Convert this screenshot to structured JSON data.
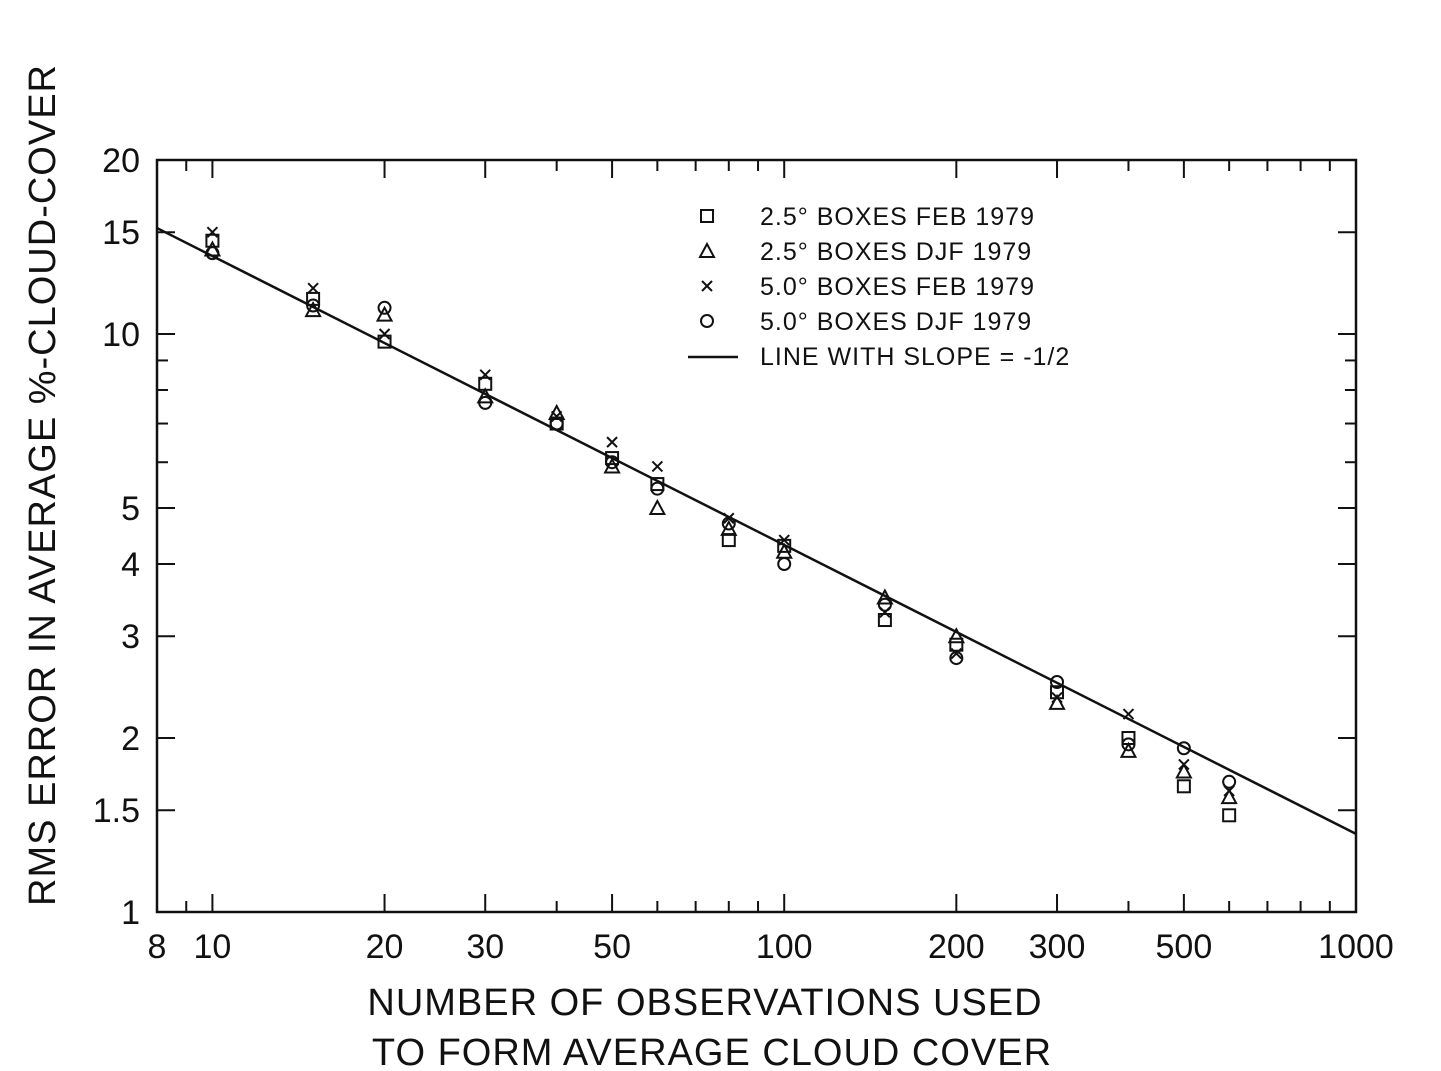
{
  "chart_data": {
    "type": "scatter",
    "xlabel": [
      "NUMBER OF OBSERVATIONS USED",
      "TO FORM AVERAGE CLOUD COVER"
    ],
    "ylabel": "RMS ERROR IN AVERAGE %-CLOUD-COVER",
    "x_scale": "log",
    "y_scale": "log",
    "xlim": [
      8,
      1000
    ],
    "ylim": [
      1,
      20
    ],
    "x_ticks": [
      8,
      10,
      20,
      30,
      50,
      100,
      200,
      300,
      500,
      1000
    ],
    "x_tick_labels": [
      "8",
      "10",
      "20",
      "30",
      "50",
      "100",
      "200",
      "300",
      "500",
      "1000"
    ],
    "y_ticks": [
      1,
      1.5,
      2,
      3,
      4,
      5,
      10,
      15,
      20
    ],
    "y_tick_labels": [
      "1",
      "1.5",
      "2",
      "3",
      "4",
      "5",
      "10",
      "15",
      "20"
    ],
    "grid": false,
    "legend_position": "top-right",
    "series": [
      {
        "name": "2.5° BOXES FEB 1979",
        "marker": "square",
        "x": [
          10,
          15,
          20,
          30,
          40,
          50,
          60,
          80,
          100,
          150,
          200,
          300,
          400,
          500,
          600
        ],
        "y": [
          14.5,
          11.5,
          9.7,
          8.2,
          7.0,
          6.1,
          5.5,
          4.4,
          4.3,
          3.2,
          2.9,
          2.4,
          2.0,
          1.65,
          1.47
        ]
      },
      {
        "name": "2.5° BOXES DJF 1979",
        "marker": "triangle",
        "x": [
          10,
          15,
          20,
          30,
          40,
          50,
          60,
          80,
          100,
          150,
          200,
          300,
          400,
          500,
          600
        ],
        "y": [
          14.0,
          11.0,
          10.8,
          7.8,
          7.3,
          5.9,
          5.0,
          4.6,
          4.2,
          3.5,
          3.0,
          2.3,
          1.9,
          1.75,
          1.58
        ]
      },
      {
        "name": "5.0° BOXES FEB 1979",
        "marker": "x",
        "x": [
          10,
          15,
          20,
          30,
          40,
          50,
          60,
          80,
          100,
          150,
          200,
          300,
          400,
          500,
          600
        ],
        "y": [
          15.0,
          12.0,
          10.0,
          8.5,
          7.2,
          6.5,
          5.9,
          4.8,
          4.4,
          3.3,
          2.8,
          2.35,
          2.2,
          1.8,
          1.62
        ]
      },
      {
        "name": "5.0° BOXES DJF 1979",
        "marker": "circle",
        "x": [
          10,
          15,
          20,
          30,
          40,
          50,
          60,
          80,
          100,
          150,
          200,
          300,
          400,
          500,
          600
        ],
        "y": [
          13.8,
          11.2,
          11.1,
          7.6,
          7.0,
          6.0,
          5.4,
          4.7,
          4.0,
          3.4,
          2.75,
          2.5,
          1.95,
          1.92,
          1.68
        ]
      },
      {
        "name": "LINE WITH SLOPE = -1/2",
        "type": "line",
        "x": [
          8,
          1000
        ],
        "y": [
          15.25,
          1.365
        ]
      }
    ]
  }
}
